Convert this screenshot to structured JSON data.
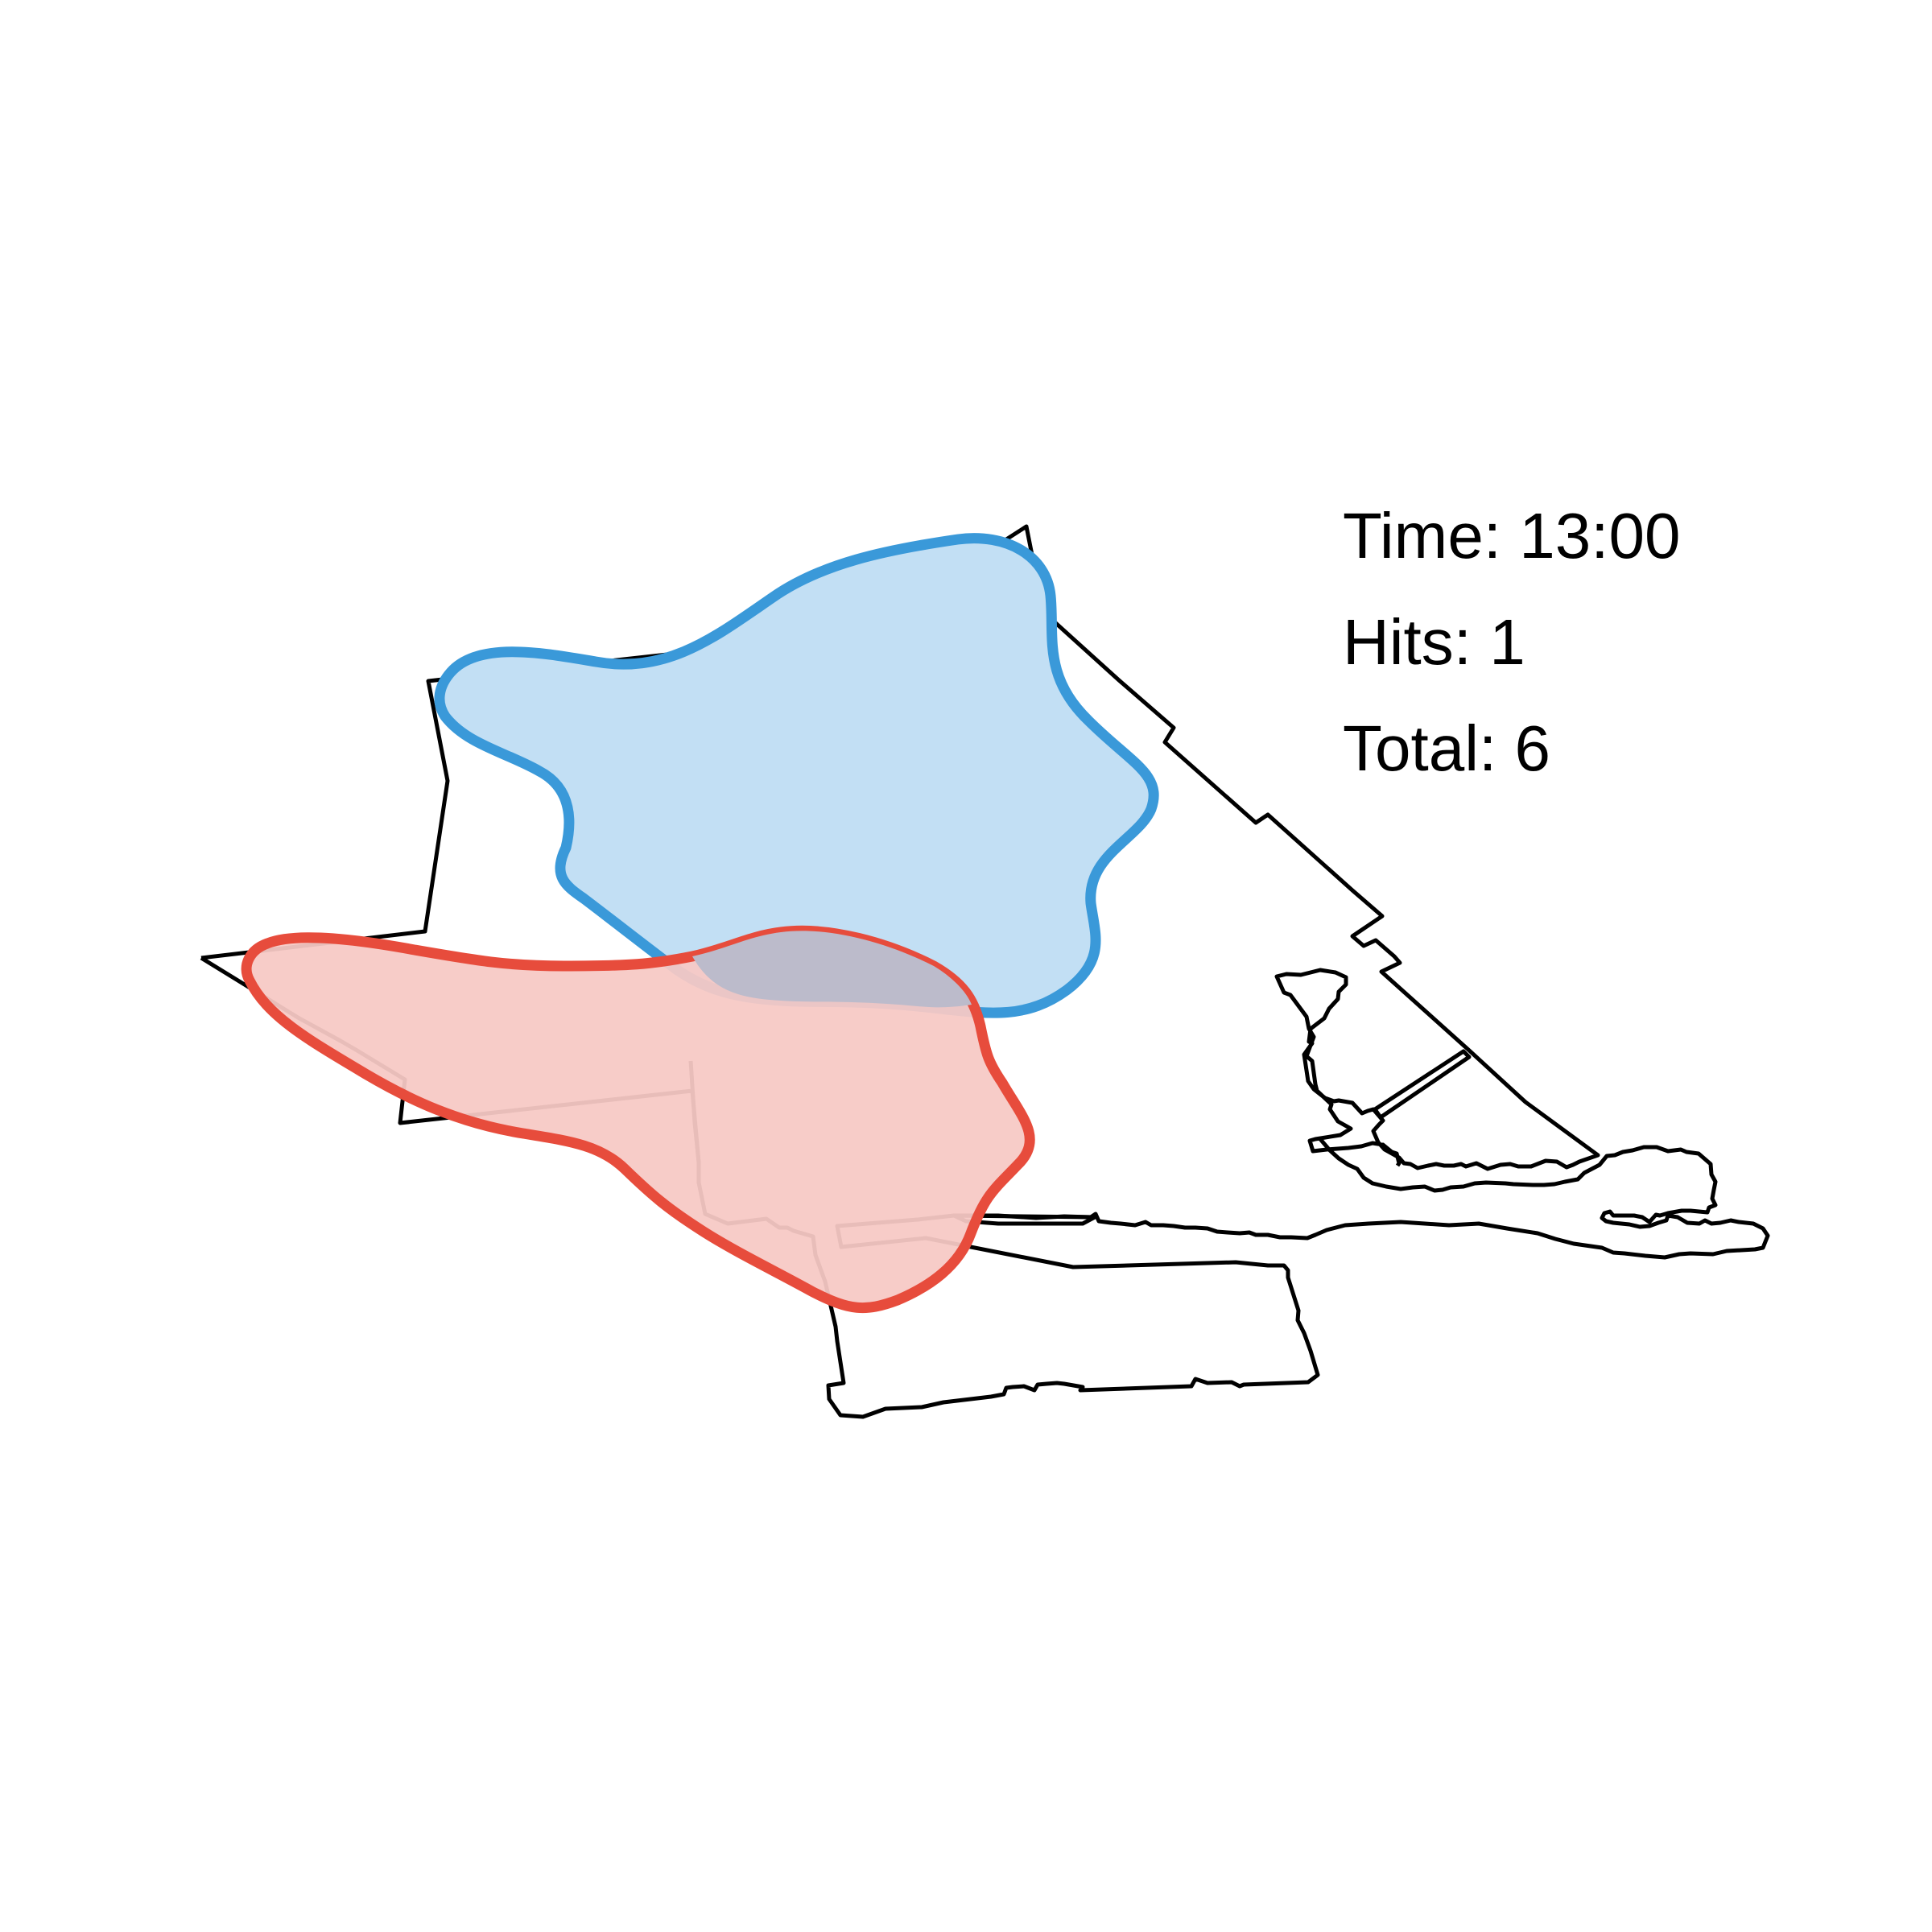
{
  "stats": {
    "time_label": "Time:",
    "time_value": "13:00",
    "hits_label": "Hits:",
    "hits_value": "1",
    "total_label": "Total:",
    "total_value": "6"
  },
  "colors": {
    "boundary": "#000000",
    "blue_stroke": "#3a99d9",
    "blue_fill": "#c2dff4",
    "red_stroke": "#e74c3c",
    "red_fill": "#f6c9c5",
    "overlap_fill": "#bcbbcb",
    "text": "#000000"
  }
}
